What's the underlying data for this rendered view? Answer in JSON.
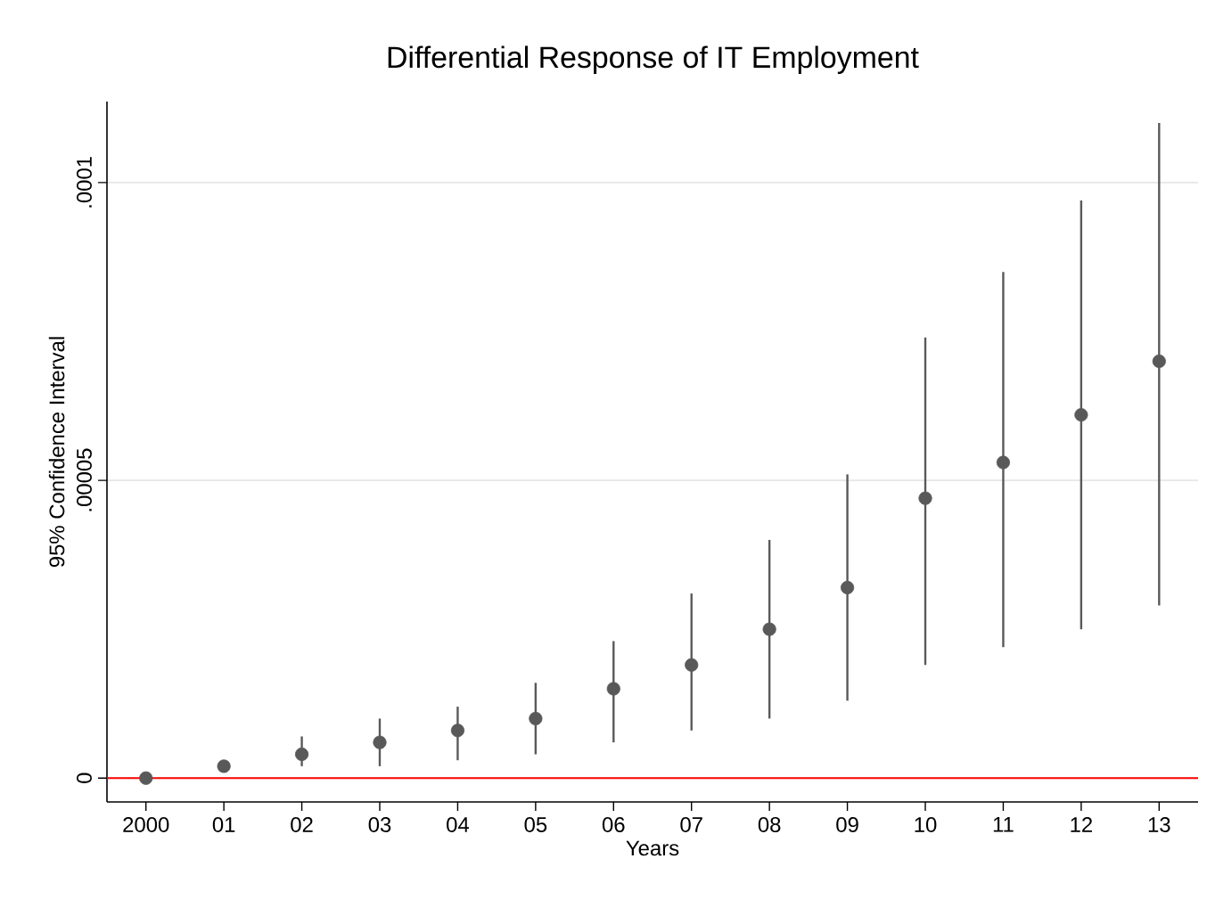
{
  "chart_data": {
    "type": "scatter",
    "title": "Differential Response of IT Employment",
    "xlabel": "Years",
    "ylabel": "95% Confidence Interval",
    "categories": [
      "2000",
      "01",
      "02",
      "03",
      "04",
      "05",
      "06",
      "07",
      "08",
      "09",
      "10",
      "11",
      "12",
      "13"
    ],
    "series": [
      {
        "color": "#595959",
        "values": [
          0,
          2e-06,
          4e-06,
          6e-06,
          8e-06,
          1e-05,
          1.5e-05,
          1.9e-05,
          2.5e-05,
          3.2e-05,
          4.7e-05,
          5.3e-05,
          6.1e-05,
          7e-05
        ],
        "errors": [
          null,
          null,
          [
            2e-06,
            7e-06
          ],
          [
            2e-06,
            1e-05
          ],
          [
            3e-06,
            1.2e-05
          ],
          [
            4e-06,
            1.6e-05
          ],
          [
            6e-06,
            2.3e-05
          ],
          [
            8e-06,
            3.1e-05
          ],
          [
            1e-05,
            4e-05
          ],
          [
            1.3e-05,
            5.1e-05
          ],
          [
            1.9e-05,
            7.4e-05
          ],
          [
            2.2e-05,
            8.5e-05
          ],
          [
            2.5e-05,
            9.7e-05
          ],
          [
            2.9e-05,
            0.00011
          ]
        ]
      }
    ],
    "ylim": [
      -4e-06,
      0.0001136
    ],
    "yticks": [
      0,
      {
        "value": 5e-05,
        "label": ".00005"
      },
      {
        "value": 0.0001,
        "label": ".0001"
      }
    ],
    "grid": "y",
    "marker": "circle",
    "ref_lines": [
      {
        "axis": "y",
        "value": 0,
        "color": "#ff0000"
      }
    ]
  }
}
